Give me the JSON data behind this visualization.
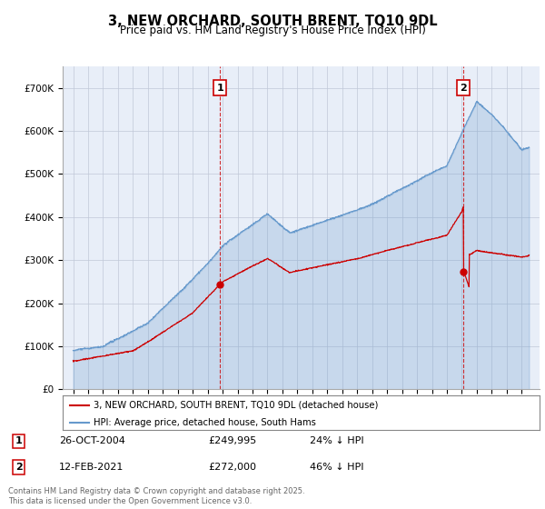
{
  "title": "3, NEW ORCHARD, SOUTH BRENT, TQ10 9DL",
  "subtitle": "Price paid vs. HM Land Registry's House Price Index (HPI)",
  "legend_label1": "3, NEW ORCHARD, SOUTH BRENT, TQ10 9DL (detached house)",
  "legend_label2": "HPI: Average price, detached house, South Hams",
  "sale1_date": "26-OCT-2004",
  "sale1_price": "£249,995",
  "sale1_hpi": "24% ↓ HPI",
  "sale2_date": "12-FEB-2021",
  "sale2_price": "£272,000",
  "sale2_hpi": "46% ↓ HPI",
  "footer": "Contains HM Land Registry data © Crown copyright and database right 2025.\nThis data is licensed under the Open Government Licence v3.0.",
  "ylim_min": 0,
  "ylim_max": 750000,
  "red_color": "#cc0000",
  "blue_color": "#6699cc",
  "blue_fill": "#dce8f5",
  "plot_bg_color": "#e8eef8",
  "sale1_year": 2004.82,
  "sale2_year": 2021.12
}
